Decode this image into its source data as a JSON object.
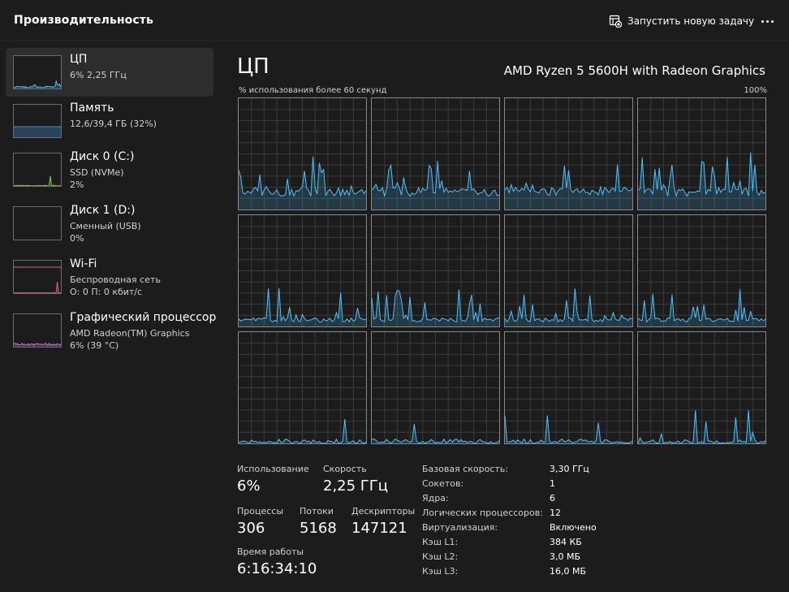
{
  "header": {
    "title": "Производительность",
    "run_task_label": "Запустить новую задачу",
    "run_task_icon": "new-task-icon",
    "more_icon": "more-icon"
  },
  "sidebar": {
    "items": [
      {
        "name": "ЦП",
        "sub1": "6% 2,25 ГГц",
        "sub2": "",
        "sub3": "",
        "color": "#4cc2ff",
        "active": true
      },
      {
        "name": "Память",
        "sub1": "12,6/39,4 ГБ (32%)",
        "sub2": "",
        "sub3": "",
        "color": "#4c8ad6",
        "active": false
      },
      {
        "name": "Диск 0 (C:)",
        "sub1": "SSD (NVMe)",
        "sub2": "2%",
        "sub3": "",
        "color": "#8bc34a",
        "active": false
      },
      {
        "name": "Диск 1 (D:)",
        "sub1": "Сменный (USB)",
        "sub2": "0%",
        "sub3": "",
        "color": "#8bc34a",
        "active": false
      },
      {
        "name": "Wi-Fi",
        "sub1": "Беспроводная сеть",
        "sub2": "О: 0 П: 0 кбит/с",
        "sub3": "",
        "color": "#e0607e",
        "active": false
      },
      {
        "name": "Графический процессор",
        "sub1": "AMD Radeon(TM) Graphics",
        "sub2": "6% (39 °C)",
        "sub3": "",
        "color": "#c27ad6",
        "active": false
      }
    ]
  },
  "main": {
    "title": "ЦП",
    "model": "AMD Ryzen 5 5600H with Radeon Graphics",
    "axis_left": "% использования более 60 секунд",
    "axis_right": "100%",
    "graph_color": "#4cc2ff",
    "logical_cpus": 12
  },
  "stats": {
    "usage": {
      "label": "Использование",
      "value": "6%"
    },
    "speed": {
      "label": "Скорость",
      "value": "2,25 ГГц"
    },
    "processes": {
      "label": "Процессы",
      "value": "306"
    },
    "threads": {
      "label": "Потоки",
      "value": "5168"
    },
    "handles": {
      "label": "Дескрипторы",
      "value": "147121"
    },
    "uptime": {
      "label": "Время работы",
      "value": "6:16:34:10"
    }
  },
  "specs": [
    {
      "key": "Базовая скорость:",
      "value": "3,30 ГГц"
    },
    {
      "key": "Сокетов:",
      "value": "1"
    },
    {
      "key": "Ядра:",
      "value": "6"
    },
    {
      "key": "Логических процессоров:",
      "value": "12"
    },
    {
      "key": "Виртуализация:",
      "value": "Включено"
    },
    {
      "key": "Кэш L1:",
      "value": "384 КБ"
    },
    {
      "key": "Кэш L2:",
      "value": "3,0 МБ"
    },
    {
      "key": "Кэш L3:",
      "value": "16,0 МБ"
    }
  ]
}
